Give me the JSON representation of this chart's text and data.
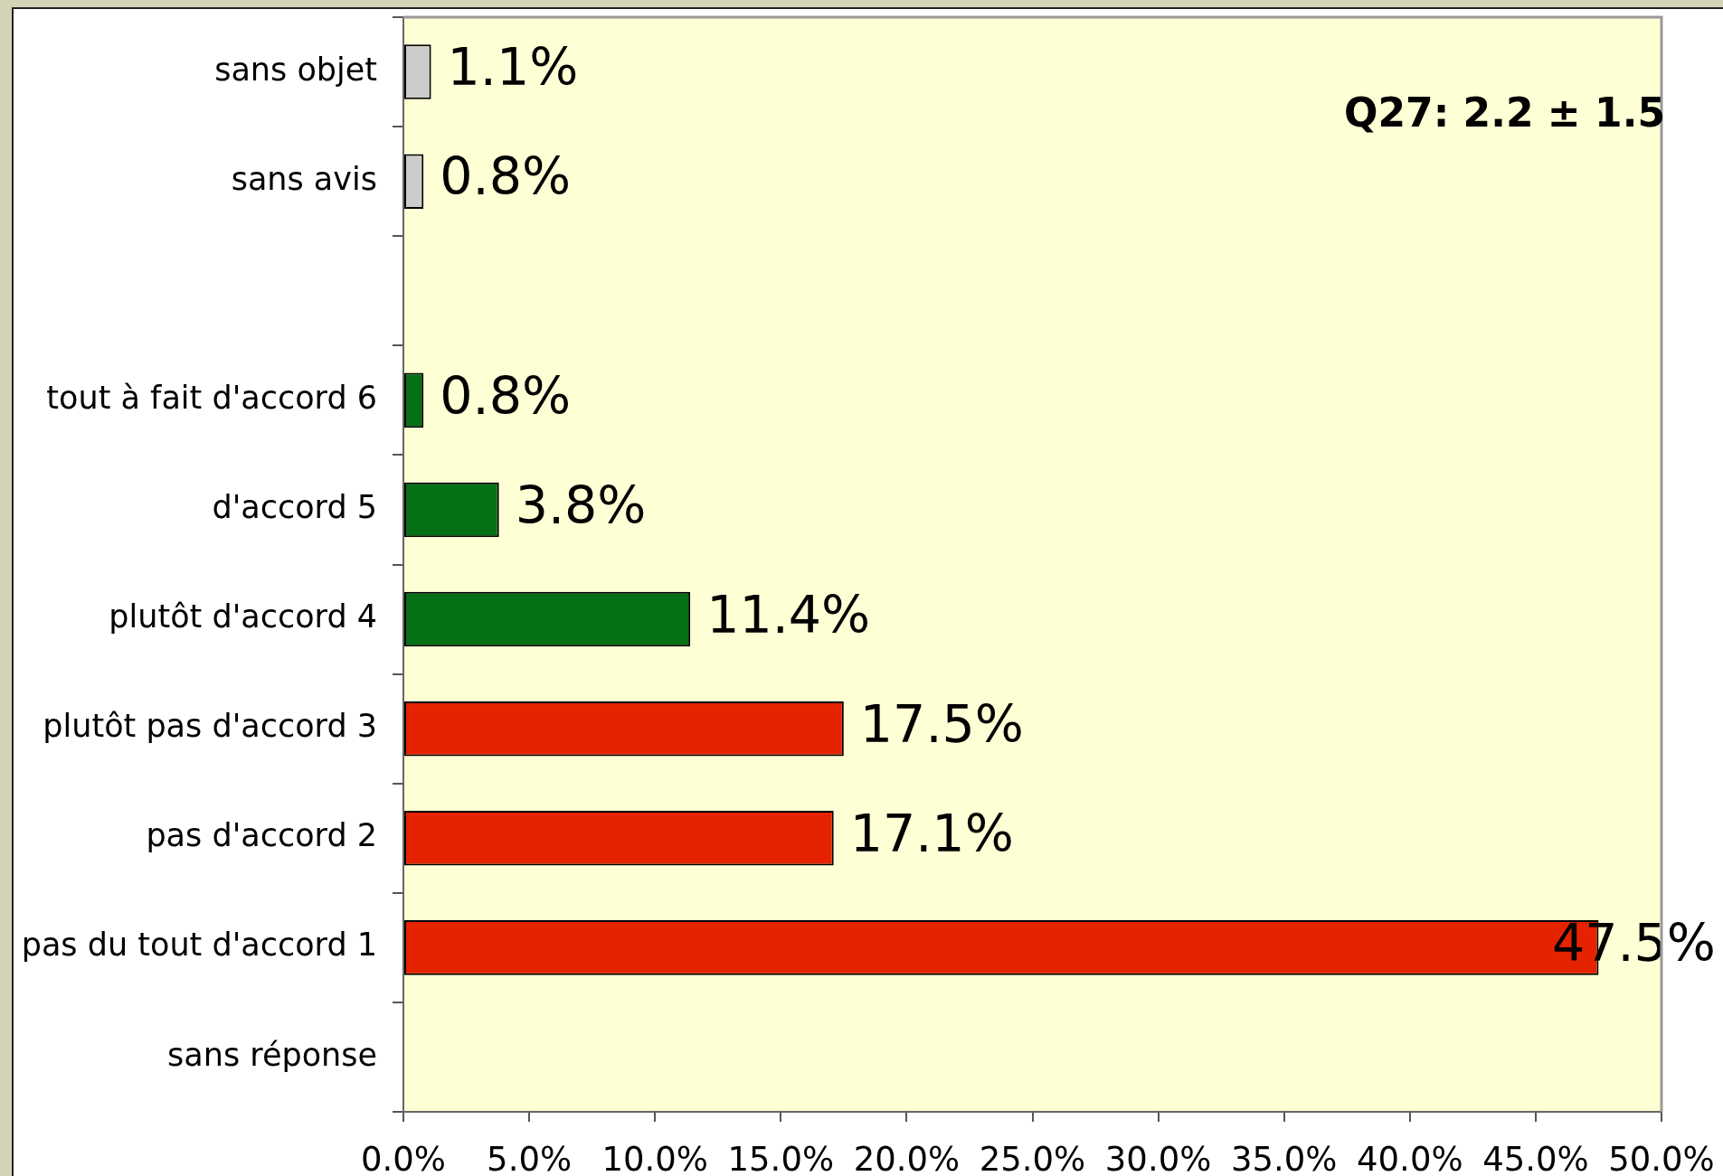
{
  "chart_data": {
    "type": "bar",
    "orientation": "horizontal",
    "categories": [
      "sans objet",
      "sans avis",
      null,
      "tout à fait d'accord 6",
      "d'accord 5",
      "plutôt d'accord 4",
      "plutôt pas d'accord 3",
      "pas d'accord 2",
      "pas du tout d'accord 1",
      "sans réponse"
    ],
    "values": [
      1.1,
      0.8,
      null,
      0.8,
      3.8,
      11.4,
      17.5,
      17.1,
      47.5,
      null
    ],
    "colors": [
      "#cccccc",
      "#cccccc",
      null,
      "#067016",
      "#067016",
      "#067016",
      "#e52300",
      "#e52300",
      "#e52300",
      null
    ],
    "value_labels": [
      "1.1%",
      "0.8%",
      null,
      "0.8%",
      "3.8%",
      "11.4%",
      "17.5%",
      "17.1%",
      "47.5%",
      null
    ],
    "xlim": [
      0,
      50
    ],
    "xticks": [
      {
        "value": 0,
        "label": "0.0%"
      },
      {
        "value": 5,
        "label": "5.0%"
      },
      {
        "value": 10,
        "label": "10.0%"
      },
      {
        "value": 15,
        "label": "15.0%"
      },
      {
        "value": 20,
        "label": "20.0%"
      },
      {
        "value": 25,
        "label": "25.0%"
      },
      {
        "value": 30,
        "label": "30.0%"
      },
      {
        "value": 35,
        "label": "35.0%"
      },
      {
        "value": 40,
        "label": "40.0%"
      },
      {
        "value": 45,
        "label": "45.0%"
      },
      {
        "value": 50,
        "label": "50.0%"
      }
    ],
    "annotations": [
      "Q27: 2.2 ± 1.5"
    ]
  }
}
